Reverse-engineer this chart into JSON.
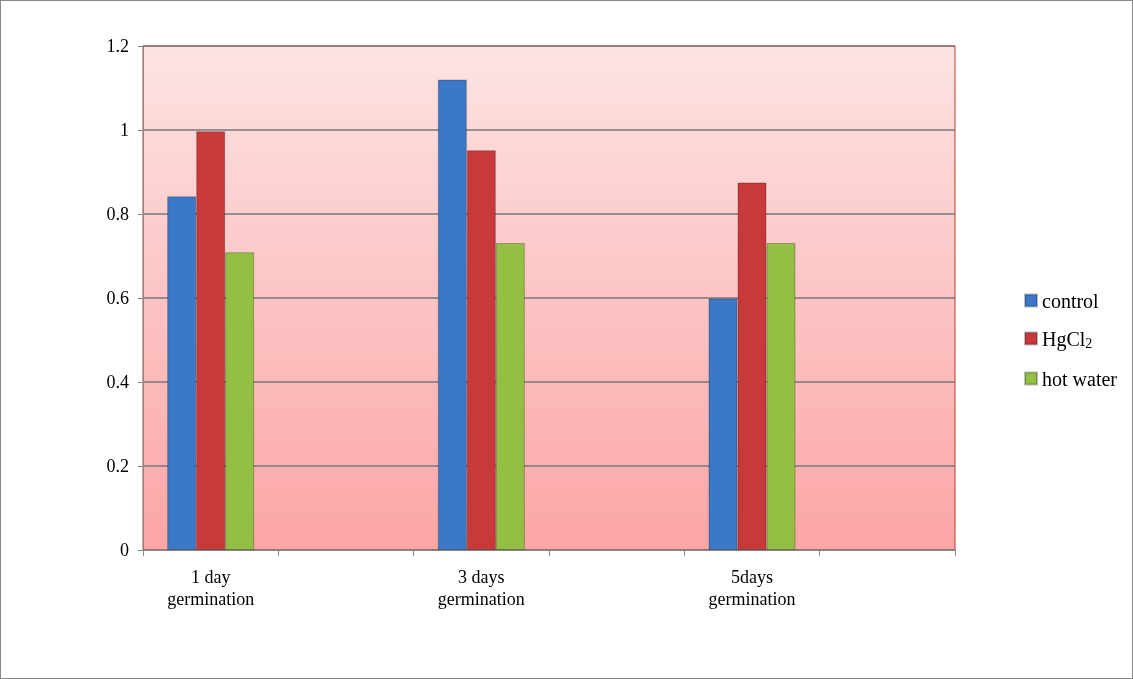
{
  "chart_data": {
    "type": "bar",
    "categories": [
      "1 day\ngermination",
      null,
      "3 days\ngermination",
      null,
      "5days\ngermination",
      null
    ],
    "series": [
      {
        "name": "control",
        "color": "#3c78c8",
        "values": [
          0.842,
          null,
          1.12,
          null,
          0.599,
          null
        ]
      },
      {
        "name": "HgCl$_{2}$",
        "color": "#c83a3a",
        "values": [
          0.997,
          null,
          0.952,
          null,
          0.875,
          null
        ]
      },
      {
        "name": "hot water",
        "color": "#94bf45",
        "values": [
          0.709,
          null,
          0.731,
          null,
          0.731,
          null
        ]
      }
    ],
    "ylim": [
      0,
      1.2
    ],
    "yticks": [
      0,
      0.2,
      0.4,
      0.6,
      0.8,
      1,
      1.2
    ],
    "grid": "y",
    "legend": "right"
  }
}
